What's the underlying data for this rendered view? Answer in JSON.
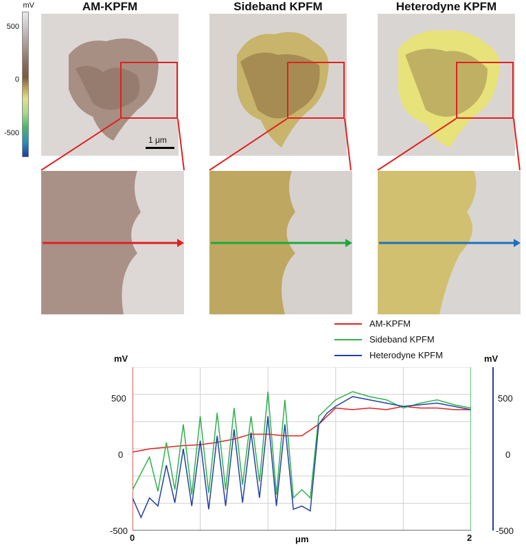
{
  "colorbar": {
    "unit": "mV",
    "ticks": [
      "500",
      "0",
      "-500"
    ],
    "colors": [
      "#e8e8ee",
      "#8a6a5c",
      "#e4e08a",
      "#47b56a",
      "#1c3da0"
    ]
  },
  "panels": [
    {
      "title": "AM-KPFM",
      "scalebar": "1 μm",
      "arrow_color": "#e02020"
    },
    {
      "title": "Sideband KPFM",
      "arrow_color": "#1aaa3a"
    },
    {
      "title": "Heterodyne KPFM",
      "arrow_color": "#1a70c0"
    }
  ],
  "chart_data": {
    "type": "line",
    "xlabel": "μm",
    "ylabel_left": "mV",
    "ylabel_right": "mV",
    "xlim": [
      0,
      2
    ],
    "ylim": [
      -500,
      500
    ],
    "x_ticks": [
      "0",
      "2"
    ],
    "y_ticks_left": [
      "500",
      "0",
      "-500"
    ],
    "y_ticks_right": [
      "500",
      "0",
      "-500"
    ],
    "grid": true,
    "legend_position": "top-right",
    "series": [
      {
        "name": "AM-KPFM",
        "color": "#e02020",
        "x": [
          0,
          0.1,
          0.2,
          0.3,
          0.4,
          0.5,
          0.6,
          0.7,
          0.8,
          0.9,
          1.0,
          1.1,
          1.2,
          1.3,
          1.4,
          1.5,
          1.6,
          1.7,
          1.8,
          1.9,
          2.0
        ],
        "y": [
          -20,
          0,
          10,
          20,
          25,
          40,
          60,
          90,
          90,
          80,
          80,
          150,
          250,
          240,
          250,
          240,
          260,
          250,
          250,
          240,
          240
        ]
      },
      {
        "name": "Sideband KPFM",
        "color": "#2db24a",
        "x": [
          0,
          0.05,
          0.1,
          0.15,
          0.2,
          0.25,
          0.3,
          0.35,
          0.4,
          0.45,
          0.5,
          0.55,
          0.6,
          0.65,
          0.7,
          0.75,
          0.8,
          0.85,
          0.9,
          0.95,
          1.0,
          1.05,
          1.1,
          1.15,
          1.2,
          1.3,
          1.4,
          1.5,
          1.6,
          1.7,
          1.8,
          1.9,
          2.0
        ],
        "y": [
          -250,
          -150,
          -50,
          -260,
          40,
          -250,
          150,
          -280,
          200,
          -270,
          220,
          -250,
          250,
          -220,
          200,
          -200,
          350,
          -280,
          300,
          -300,
          -250,
          -300,
          200,
          250,
          300,
          350,
          320,
          300,
          250,
          280,
          300,
          270,
          250
        ]
      },
      {
        "name": "Heterodyne KPFM",
        "color": "#2040a0",
        "x": [
          0,
          0.05,
          0.1,
          0.15,
          0.2,
          0.25,
          0.3,
          0.35,
          0.4,
          0.45,
          0.5,
          0.55,
          0.6,
          0.65,
          0.7,
          0.75,
          0.8,
          0.85,
          0.9,
          0.95,
          1.0,
          1.05,
          1.1,
          1.15,
          1.2,
          1.3,
          1.4,
          1.5,
          1.6,
          1.7,
          1.8,
          1.9,
          2.0
        ],
        "y": [
          -300,
          -420,
          -300,
          -350,
          -100,
          -330,
          0,
          -350,
          50,
          -370,
          80,
          -350,
          120,
          -330,
          100,
          -300,
          200,
          -350,
          150,
          -370,
          -350,
          -380,
          150,
          220,
          260,
          320,
          300,
          280,
          260,
          270,
          280,
          260,
          240
        ]
      }
    ]
  }
}
